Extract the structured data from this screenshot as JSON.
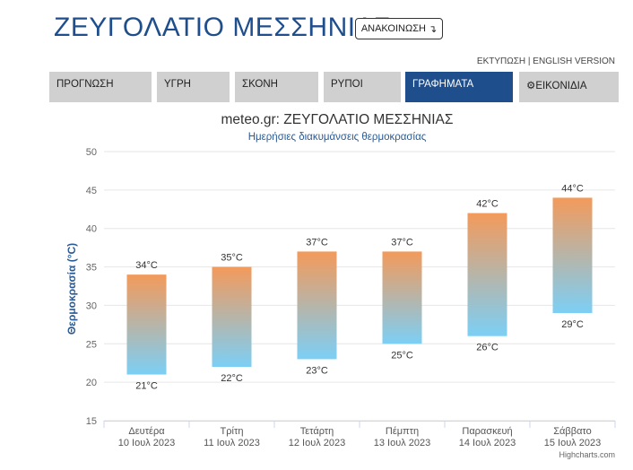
{
  "header": {
    "title": "ΖΕΥΓΟΛΑΤΙΟ ΜΕΣΣΗΝΙΑΣ",
    "announce_label": "ΑΝΑΚΟΙΝΩΣΗ",
    "announce_icon": "↴",
    "print_link": "ΕΚΤΥΠΩΣΗ",
    "separator": "|",
    "english_link": "ENGLISH VERSION"
  },
  "tabs": [
    {
      "label": "ΠΡΟΓΝΩΣΗ",
      "active": false
    },
    {
      "label": "ΥΓΡΗ",
      "active": false
    },
    {
      "label": "ΣΚΟΝΗ",
      "active": false
    },
    {
      "label": "ΡΥΠΟΙ",
      "active": false
    },
    {
      "label": "ΓΡΑΦΗΜΑΤΑ",
      "active": true
    },
    {
      "label": "ΕΙΚΟΝΙΔΙΑ",
      "icon": "gear-icon",
      "active": false
    }
  ],
  "chart_data": {
    "type": "bar",
    "subtype": "columnrange",
    "title": "meteo.gr: ΖΕΥΓΟΛΑΤΙΟ ΜΕΣΣΗΝΙΑΣ",
    "subtitle": "Ημερήσιες διακυμάνσεις θερμοκρασίας",
    "ylabel": "Θερμοκρασία (°C)",
    "ylim": [
      15,
      50
    ],
    "yticks": [
      15,
      20,
      25,
      30,
      35,
      40,
      45,
      50
    ],
    "grid": true,
    "categories": [
      {
        "day": "Δευτέρα",
        "date": "10 Ιουλ 2023"
      },
      {
        "day": "Τρίτη",
        "date": "11 Ιουλ 2023"
      },
      {
        "day": "Τετάρτη",
        "date": "12 Ιουλ 2023"
      },
      {
        "day": "Πέμπτη",
        "date": "13 Ιουλ 2023"
      },
      {
        "day": "Παρασκευή",
        "date": "14 Ιουλ 2023"
      },
      {
        "day": "Σάββατο",
        "date": "15 Ιουλ 2023"
      }
    ],
    "low": [
      21,
      22,
      23,
      25,
      26,
      29
    ],
    "high": [
      34,
      35,
      37,
      37,
      42,
      44
    ],
    "unit": "°C",
    "colors": {
      "top": "#f39a5b",
      "bottom": "#7ccff5"
    }
  },
  "credit": "Highcharts.com"
}
